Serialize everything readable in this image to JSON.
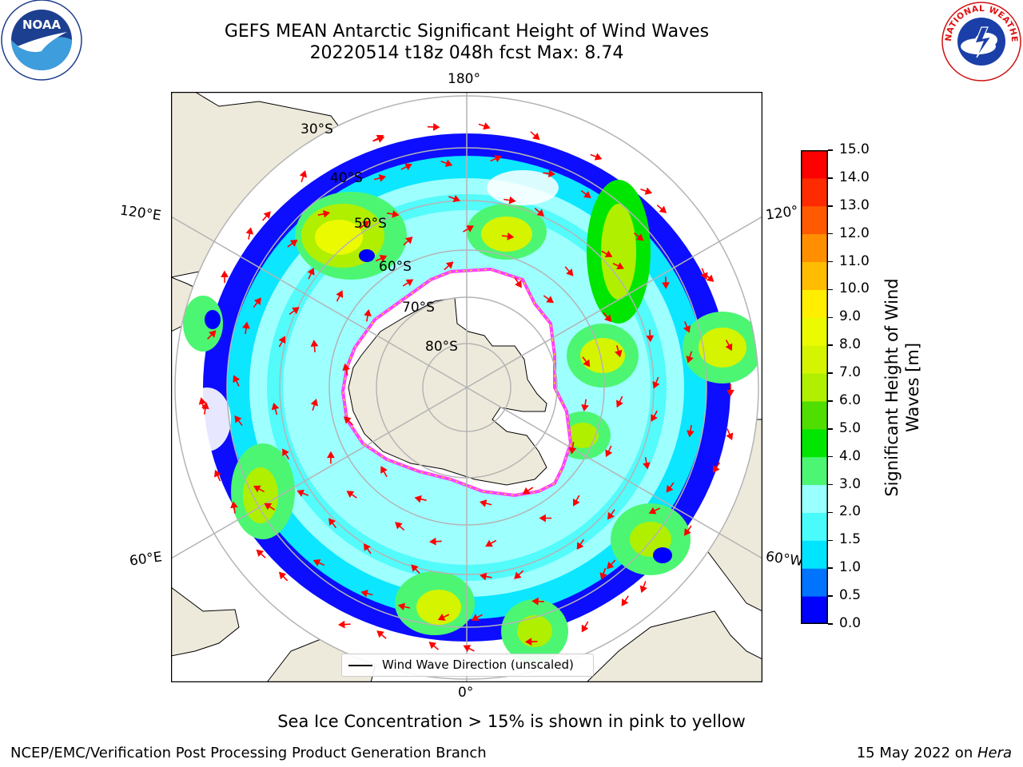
{
  "title": {
    "line1": "GEFS MEAN Antarctic Significant Height of Wind Waves",
    "line2": "20220514 t18z 048h fcst   Max: 8.74"
  },
  "map": {
    "projection": "south-polar-stereographic",
    "longitude_labels": {
      "top": "180°",
      "bottom": "0°",
      "upper_left": "120°E",
      "upper_right": "120°",
      "lower_left": "60°E",
      "lower_right": "60°W"
    },
    "latitude_labels": [
      "30°S",
      "40°S",
      "50°S",
      "60°S",
      "70°S",
      "80°S"
    ],
    "colors": {
      "land": "#eeeadb",
      "ocean_no_data": "#ffffff",
      "graticule": "#b4b4b4",
      "coast": "#000000",
      "arrow": "#ff0000",
      "sea_ice_edge": "#ff40ff"
    }
  },
  "legend": {
    "label": "Wind Wave Direction (unscaled)"
  },
  "colorbar": {
    "label_line1": "Significant Height of Wind",
    "label_line2": "Waves [m]",
    "ticks": [
      "0.0",
      "0.5",
      "1.0",
      "1.5",
      "2.0",
      "3.0",
      "4.0",
      "5.0",
      "6.0",
      "7.0",
      "8.0",
      "9.0",
      "10.0",
      "11.0",
      "12.0",
      "13.0",
      "14.0",
      "15.0"
    ],
    "colors": [
      "#0000ff",
      "#0073ff",
      "#00e5ff",
      "#4afbfb",
      "#99ffff",
      "#4cf673",
      "#00e600",
      "#4fde00",
      "#b0ef00",
      "#d4f400",
      "#ecfa00",
      "#ffee00",
      "#ffbc00",
      "#ff8f00",
      "#ff5a00",
      "#ff2b00",
      "#ff0000"
    ]
  },
  "note": "Sea Ice Concentration > 15% is shown in pink to yellow",
  "footer": {
    "left": "NCEP/EMC/Verification Post Processing Product Generation Branch",
    "right_prefix": "15 May 2022 on ",
    "right_host": "Hera"
  },
  "logos": {
    "left": "NOAA",
    "right": "NATIONAL WEATHER SERVICE"
  }
}
